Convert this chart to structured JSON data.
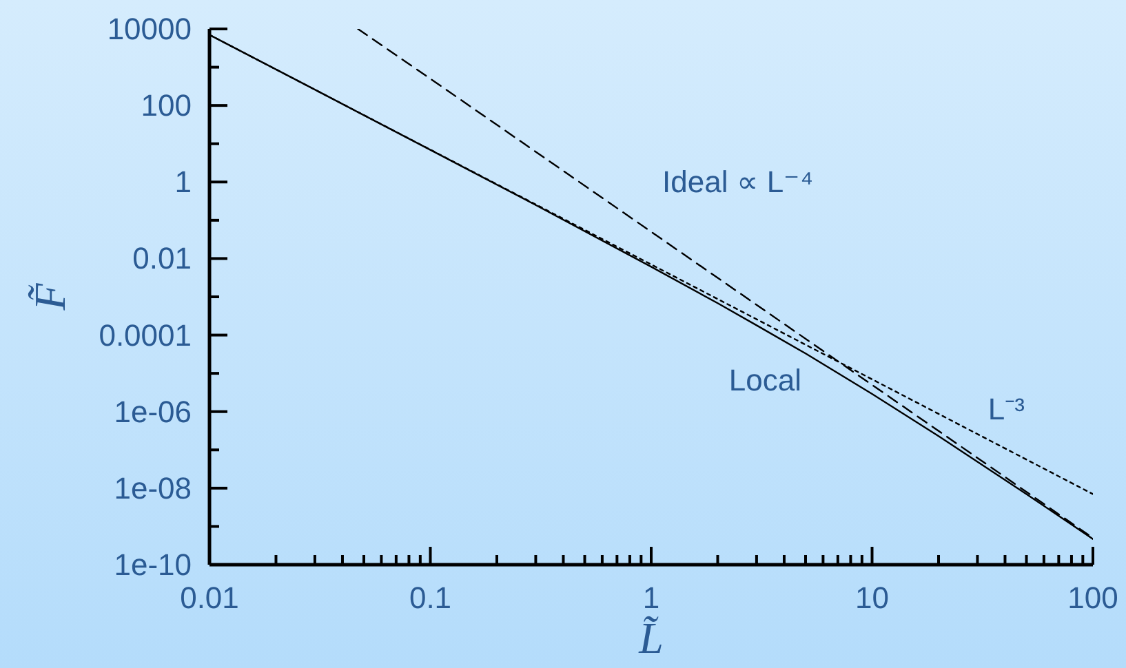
{
  "chart_data": {
    "type": "line",
    "xlabel": "L̃",
    "ylabel": "F̃",
    "log": "xy",
    "marker": "none",
    "xlim": [
      0.01,
      100
    ],
    "ylim": [
      1e-10,
      10000
    ],
    "xticks": [
      0.01,
      {
        "value": 0.02,
        "label": null
      },
      {
        "value": 0.03,
        "label": null
      },
      {
        "value": 0.04,
        "label": null
      },
      {
        "value": 0.05,
        "label": null
      },
      {
        "value": 0.06,
        "label": null
      },
      {
        "value": 0.07,
        "label": null
      },
      {
        "value": 0.08,
        "label": null
      },
      {
        "value": 0.09,
        "label": null
      },
      0.1,
      {
        "value": 0.2,
        "label": null
      },
      {
        "value": 0.3,
        "label": null
      },
      {
        "value": 0.4,
        "label": null
      },
      {
        "value": 0.5,
        "label": null
      },
      {
        "value": 0.6,
        "label": null
      },
      {
        "value": 0.7,
        "label": null
      },
      {
        "value": 0.8,
        "label": null
      },
      {
        "value": 0.9,
        "label": null
      },
      1,
      {
        "value": 2,
        "label": null
      },
      {
        "value": 3,
        "label": null
      },
      {
        "value": 4,
        "label": null
      },
      {
        "value": 5,
        "label": null
      },
      {
        "value": 6,
        "label": null
      },
      {
        "value": 7,
        "label": null
      },
      {
        "value": 8,
        "label": null
      },
      {
        "value": 9,
        "label": null
      },
      10,
      {
        "value": 20,
        "label": null
      },
      {
        "value": 30,
        "label": null
      },
      {
        "value": 40,
        "label": null
      },
      {
        "value": 50,
        "label": null
      },
      {
        "value": 60,
        "label": null
      },
      {
        "value": 70,
        "label": null
      },
      {
        "value": 80,
        "label": null
      },
      {
        "value": 90,
        "label": null
      },
      100
    ],
    "yticks": [
      {
        "value": 1e-10,
        "label": "1e-10"
      },
      {
        "value": 1e-09,
        "label": null
      },
      {
        "value": 1e-08,
        "label": "1e-08"
      },
      {
        "value": 1e-07,
        "label": null
      },
      {
        "value": 1e-06,
        "label": "1e-06"
      },
      {
        "value": 1e-05,
        "label": null
      },
      0.0001,
      {
        "value": 0.001,
        "label": null
      },
      0.01,
      {
        "value": 0.1,
        "label": null
      },
      1,
      {
        "value": 10,
        "label": null
      },
      100,
      {
        "value": 1000,
        "label": null
      },
      10000
    ],
    "series": [
      {
        "name": "Local",
        "color": "#000000",
        "line_style": "solid",
        "x": [
          0.01,
          0.03,
          0.1,
          0.3,
          1,
          2,
          3,
          5,
          10,
          20,
          50,
          100
        ],
        "values": [
          7000,
          260,
          6.9,
          0.25,
          0.0061,
          0.00068,
          0.00018,
          3.3e-05,
          2.9e-06,
          2.3e-07,
          7e-09,
          4.7e-10
        ]
      },
      {
        "name": "Ideal ∝ L⁻⁴",
        "color": "#000000",
        "line_style": "dashed",
        "x": [
          0.047,
          0.1,
          1,
          10,
          100
        ],
        "values": [
          10000,
          500,
          0.05,
          5e-06,
          5e-10
        ]
      },
      {
        "name": "L⁻³",
        "color": "#000000",
        "line_style": "dotted",
        "x": [
          0.01,
          0.1,
          1,
          10,
          100
        ],
        "values": [
          7000,
          7,
          0.007,
          7e-06,
          7e-09
        ]
      }
    ]
  }
}
